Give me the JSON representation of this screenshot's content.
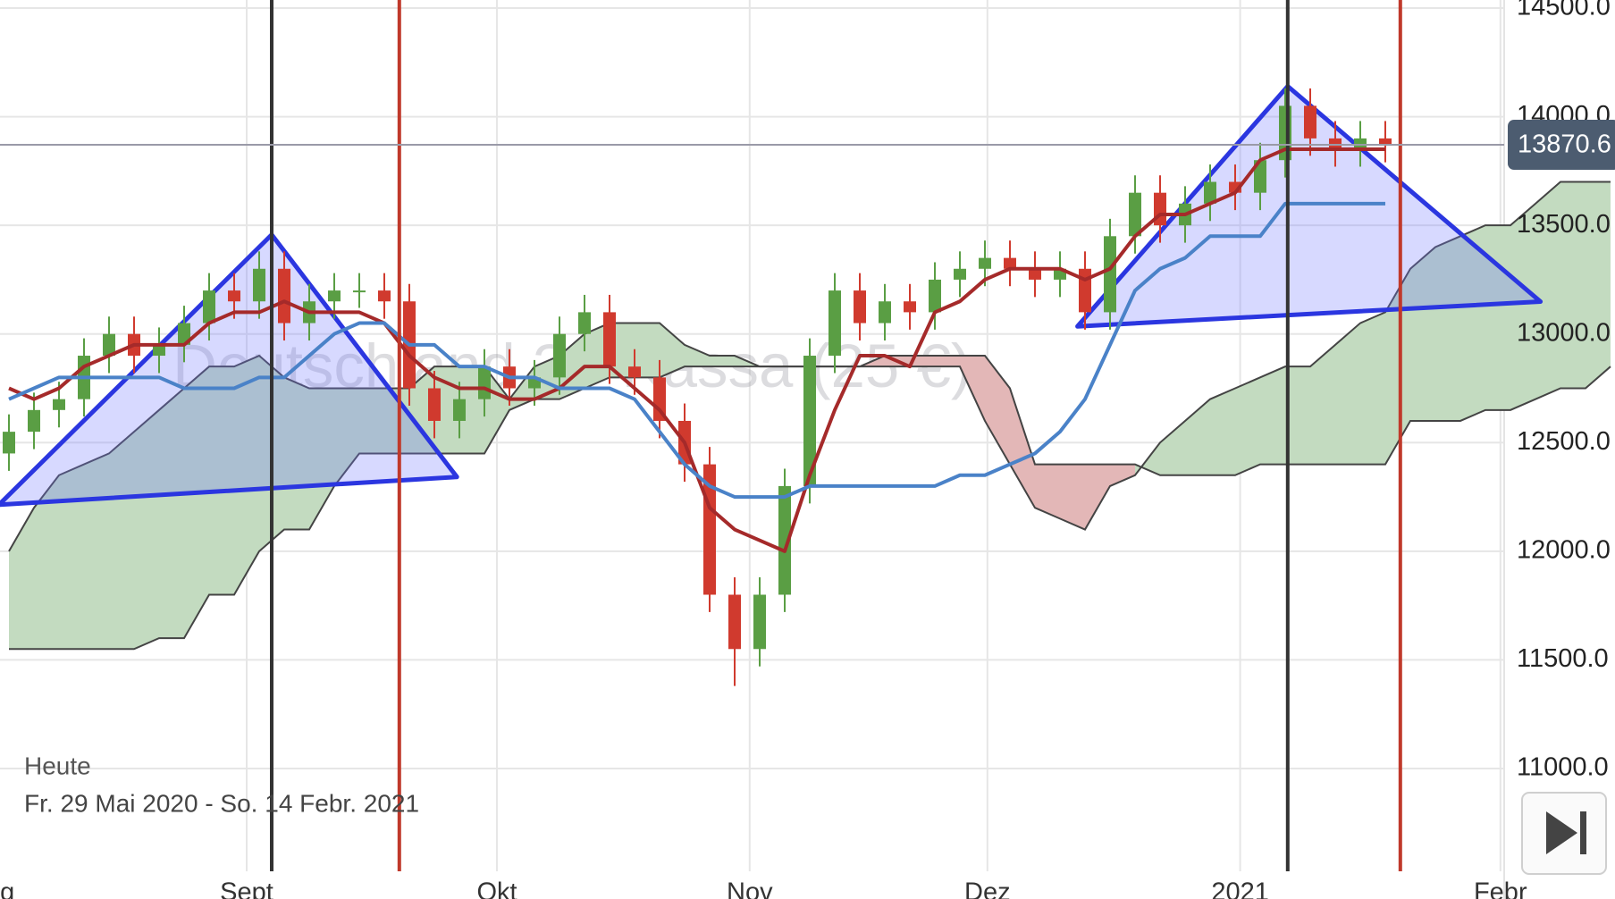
{
  "chart_data": {
    "type": "candlestick",
    "watermark": "Deutschland 30-Kassa (25 €)",
    "period_label": "Heute",
    "period": "Fr. 29 Mai 2020 - So. 14 Febr. 2021",
    "categories": [
      null,
      null,
      null,
      null,
      null,
      null,
      null,
      null,
      null,
      null,
      null,
      null,
      null,
      null,
      null,
      null,
      null,
      null,
      null,
      null,
      null,
      null,
      null,
      null,
      null,
      null,
      null,
      null,
      null,
      null,
      null,
      null,
      null,
      null,
      null,
      null,
      null,
      null,
      null,
      null,
      null,
      null,
      null,
      null,
      null,
      null,
      null,
      null,
      null,
      null,
      null,
      null,
      null,
      null,
      null,
      null,
      null,
      null,
      null,
      null,
      null,
      null,
      null,
      null,
      null
    ],
    "xticks": [
      {
        "value": -0.7,
        "label": "Aug"
      },
      {
        "value": 9.5,
        "label": "Sept"
      },
      {
        "value": 19.5,
        "label": "Okt"
      },
      {
        "value": 29.6,
        "label": "Nov"
      },
      {
        "value": 39.1,
        "label": "Dez"
      },
      {
        "value": 49.2,
        "label": "2021"
      },
      {
        "value": 59.6,
        "label": "Febr"
      }
    ],
    "ylim": [
      11000,
      14500
    ],
    "yticks": [
      {
        "value": 11000,
        "label": "11000.0"
      },
      {
        "value": 11500,
        "label": "11500.0"
      },
      {
        "value": 12000,
        "label": "12000.0"
      },
      {
        "value": 12500,
        "label": "12500.0"
      },
      {
        "value": 13000,
        "label": "13000.0"
      },
      {
        "value": 13500,
        "label": "13500.0"
      },
      {
        "value": 14000,
        "label": "14000.0"
      },
      {
        "value": 14500,
        "label": "14500.0"
      }
    ],
    "grid": true,
    "up_color": "#5a9e44",
    "down_color": "#d03a2e",
    "open": [
      12450,
      12550,
      12650,
      12700,
      12900,
      13000,
      12900,
      12950,
      13050,
      13200,
      13150,
      13300,
      13050,
      13150,
      13200,
      13200,
      13150,
      12750,
      12600,
      12700,
      12850,
      12750,
      12800,
      13000,
      13100,
      12850,
      12800,
      12600,
      12400,
      11800,
      11550,
      11800,
      12300,
      12900,
      13200,
      13050,
      13150,
      13100,
      13250,
      13300,
      13350,
      13300,
      13250,
      13300,
      13100,
      13450,
      13650,
      13500,
      13600,
      13700,
      13650,
      13800,
      14050,
      13900,
      13850,
      13900,
      null,
      null,
      null,
      null,
      null,
      null,
      null,
      null,
      null
    ],
    "high": [
      12630,
      12730,
      12780,
      12980,
      13080,
      13080,
      13030,
      13130,
      13280,
      13280,
      13380,
      13380,
      13230,
      13280,
      13280,
      13280,
      13230,
      12830,
      12780,
      12930,
      12930,
      12880,
      13080,
      13180,
      13180,
      12930,
      12880,
      12680,
      12480,
      11880,
      11880,
      12380,
      12980,
      13280,
      13280,
      13230,
      13230,
      13330,
      13380,
      13430,
      13430,
      13380,
      13380,
      13380,
      13530,
      13730,
      13730,
      13680,
      13780,
      13780,
      13880,
      14130,
      14130,
      13980,
      13980,
      13980,
      null,
      null,
      null,
      null,
      null,
      null,
      null,
      null,
      null
    ],
    "low": [
      12370,
      12470,
      12570,
      12620,
      12820,
      12820,
      12820,
      12870,
      12970,
      13070,
      13070,
      12970,
      12970,
      13070,
      13120,
      13070,
      12670,
      12520,
      12520,
      12620,
      12670,
      12670,
      12720,
      12920,
      12770,
      12720,
      12520,
      12320,
      11720,
      11380,
      11470,
      11720,
      12220,
      12820,
      12970,
      12970,
      13020,
      13020,
      13170,
      13220,
      13220,
      13170,
      13170,
      13020,
      13020,
      13370,
      13420,
      13420,
      13520,
      13570,
      13570,
      13720,
      13820,
      13770,
      13770,
      13790,
      null,
      null,
      null,
      null,
      null,
      null,
      null,
      null,
      null
    ],
    "close": [
      12550,
      12650,
      12700,
      12900,
      13000,
      12900,
      12950,
      13050,
      13200,
      13150,
      13300,
      13050,
      13150,
      13200,
      13200,
      13150,
      12750,
      12600,
      12700,
      12850,
      12750,
      12800,
      13000,
      13100,
      12850,
      12800,
      12600,
      12400,
      11800,
      11550,
      11800,
      12300,
      12900,
      13200,
      13050,
      13150,
      13100,
      13250,
      13300,
      13350,
      13300,
      13250,
      13300,
      13100,
      13450,
      13650,
      13500,
      13600,
      13700,
      13650,
      13800,
      14050,
      13900,
      13850,
      13900,
      13870.6,
      null,
      null,
      null,
      null,
      null,
      null,
      null,
      null,
      null
    ],
    "series": [
      {
        "color": "#a52a2a",
        "values": [
          12750,
          12700,
          12750,
          12850,
          12900,
          12950,
          12950,
          12950,
          13050,
          13100,
          13100,
          13150,
          13100,
          13100,
          13100,
          13050,
          12900,
          12800,
          12750,
          12750,
          12700,
          12700,
          12750,
          12850,
          12850,
          12750,
          12650,
          12500,
          12200,
          12100,
          12050,
          12000,
          12350,
          12650,
          12900,
          12900,
          12850,
          13100,
          13150,
          13250,
          13300,
          13300,
          13300,
          13250,
          13300,
          13450,
          13550,
          13550,
          13600,
          13650,
          13800,
          13850,
          13850,
          13850,
          13850,
          13850,
          null,
          null,
          null,
          null,
          null,
          null,
          null,
          null,
          null
        ]
      },
      {
        "color": "#4a82c8",
        "values": [
          12700,
          12750,
          12800,
          12800,
          12800,
          12800,
          12800,
          12750,
          12750,
          12750,
          12800,
          12800,
          12900,
          13000,
          13050,
          13050,
          12950,
          12950,
          12850,
          12850,
          12800,
          12800,
          12750,
          12750,
          12750,
          12700,
          12550,
          12400,
          12300,
          12250,
          12250,
          12250,
          12300,
          12300,
          12300,
          12300,
          12300,
          12300,
          12350,
          12350,
          12400,
          12450,
          12550,
          12700,
          12950,
          13200,
          13300,
          13350,
          13450,
          13450,
          13450,
          13600,
          13600,
          13600,
          13600,
          13600,
          null,
          null,
          null,
          null,
          null,
          null,
          null,
          null,
          null
        ]
      }
    ],
    "cloud": {
      "up_color": "#c3dbc0",
      "down_color": "#e3b7b7",
      "span_a": [
        12000,
        12200,
        12350,
        12400,
        12450,
        12550,
        12650,
        12750,
        12850,
        12850,
        12900,
        12800,
        12750,
        12750,
        12750,
        12750,
        12750,
        12850,
        12850,
        12850,
        12700,
        12850,
        12900,
        13000,
        13050,
        13050,
        13050,
        12950,
        12900,
        12900,
        12850,
        12850,
        12850,
        12850,
        12850,
        12850,
        12850,
        12850,
        12850,
        12600,
        12400,
        12200,
        12150,
        12100,
        12300,
        12350,
        12500,
        12600,
        12700,
        12750,
        12800,
        12850,
        12850,
        12950,
        13050,
        13100,
        13300,
        13400,
        13450,
        13500,
        13500,
        13600,
        13700,
        13700,
        13700
      ],
      "span_b": [
        11550,
        11550,
        11550,
        11550,
        11550,
        11550,
        11600,
        11600,
        11800,
        11800,
        12000,
        12100,
        12100,
        12300,
        12450,
        12450,
        12450,
        12450,
        12450,
        12450,
        12650,
        12700,
        12700,
        12750,
        12800,
        12800,
        12800,
        12850,
        12850,
        12850,
        12850,
        12850,
        12850,
        12850,
        12850,
        12900,
        12900,
        12900,
        12900,
        12900,
        12750,
        12400,
        12400,
        12400,
        12400,
        12400,
        12350,
        12350,
        12350,
        12350,
        12400,
        12400,
        12400,
        12400,
        12400,
        12400,
        12600,
        12600,
        12600,
        12650,
        12650,
        12700,
        12750,
        12750,
        12850
      ]
    },
    "last_price": 13870.6,
    "vlines": [
      {
        "x": 10.5,
        "color": "#333333"
      },
      {
        "x": 15.6,
        "color": "#c0392b"
      },
      {
        "x": 51.1,
        "color": "#333333"
      },
      {
        "x": 55.6,
        "color": "#c0392b"
      }
    ],
    "triangles": [
      {
        "x": [
          -0.4,
          10.5,
          17.9
        ],
        "y": [
          12214,
          13457,
          12342
        ]
      },
      {
        "x": [
          42.7,
          51.1,
          61.2
        ],
        "y": [
          13035,
          14140,
          13149
        ]
      }
    ]
  }
}
